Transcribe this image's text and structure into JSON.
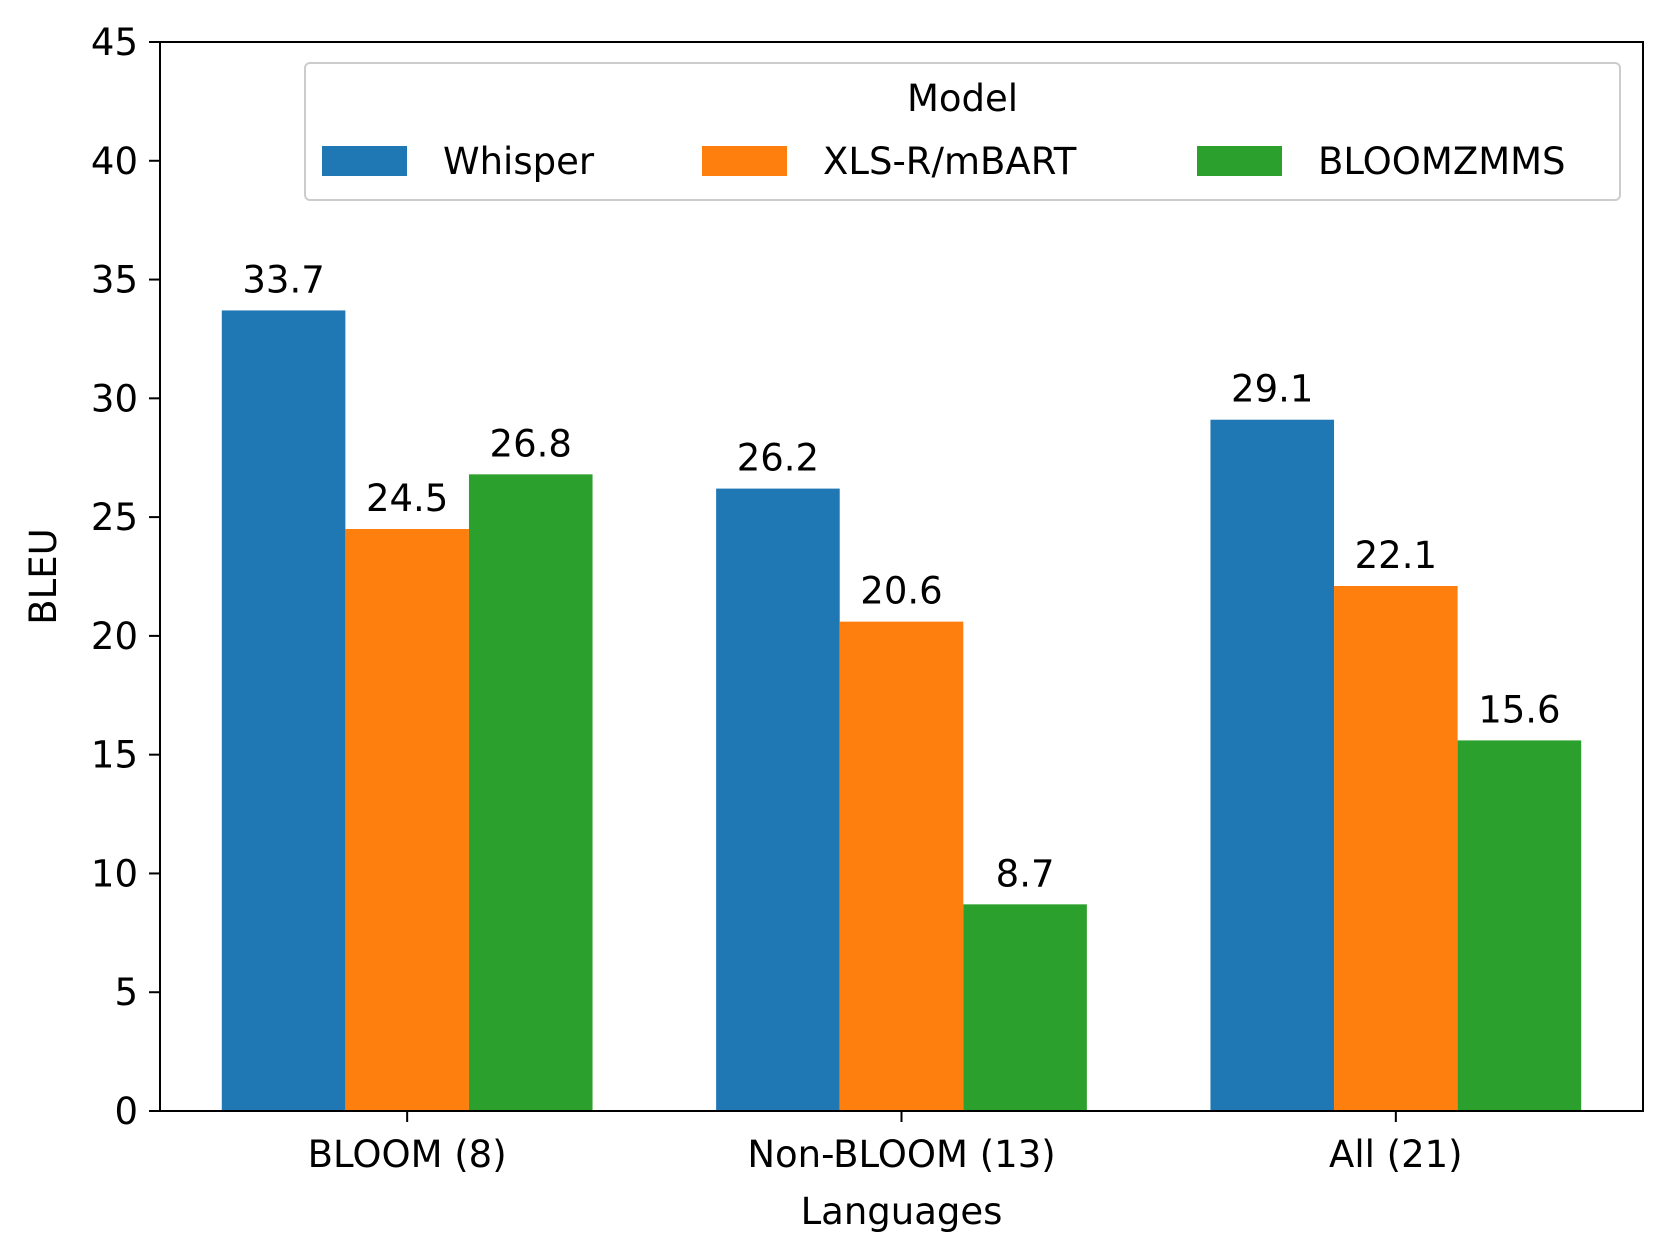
{
  "chart_data": {
    "type": "bar",
    "title": "",
    "xlabel": "Languages",
    "ylabel": "BLEU",
    "categories": [
      "BLOOM (8)",
      "Non-BLOOM (13)",
      "All (21)"
    ],
    "series": [
      {
        "name": "Whisper",
        "color": "#1f77b4",
        "values": [
          33.7,
          26.2,
          29.1
        ]
      },
      {
        "name": "XLS-R/mBART",
        "color": "#ff7f0e",
        "values": [
          24.5,
          20.6,
          22.1
        ]
      },
      {
        "name": "BLOOMZMMS",
        "color": "#2ca02c",
        "values": [
          26.8,
          8.7,
          15.6
        ]
      }
    ],
    "ylim": [
      0,
      45
    ],
    "yticks": [
      0,
      5,
      10,
      15,
      20,
      25,
      30,
      35,
      40,
      45
    ],
    "data_labels": true,
    "grid": false,
    "legend": {
      "title": "Model",
      "placement": "top-right",
      "columns": 3
    }
  }
}
